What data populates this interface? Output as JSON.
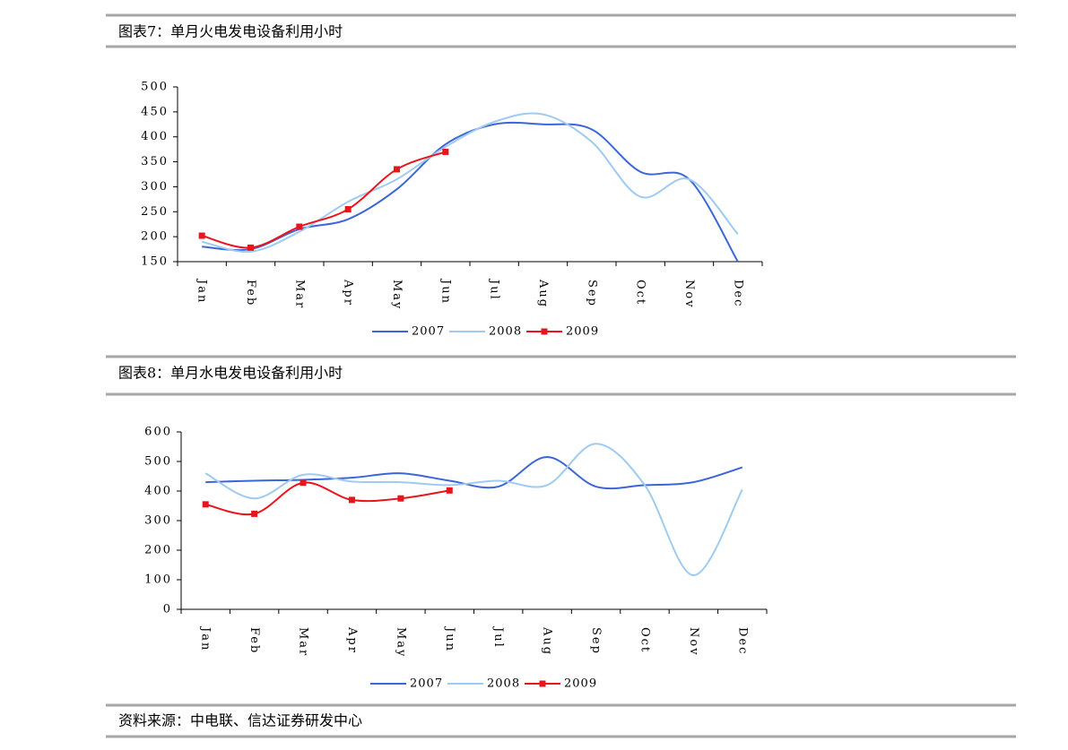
{
  "chart_data": [
    {
      "type": "line",
      "title": "图表7：单月火电发电设备利用小时",
      "categories": [
        "Jan",
        "Feb",
        "Mar",
        "Apr",
        "May",
        "Jun",
        "Jul",
        "Aug",
        "Sep",
        "Oct",
        "Nov",
        "Dec"
      ],
      "ylim": [
        150,
        500
      ],
      "yticks": [
        150,
        200,
        250,
        300,
        350,
        400,
        450,
        500
      ],
      "series": [
        {
          "name": "2007",
          "color": "#3a66d8",
          "values": [
            180,
            175,
            215,
            235,
            295,
            385,
            425,
            425,
            415,
            330,
            315,
            150
          ]
        },
        {
          "name": "2008",
          "color": "#9fcbf0",
          "values": [
            190,
            170,
            210,
            270,
            315,
            380,
            430,
            445,
            390,
            280,
            315,
            205
          ]
        },
        {
          "name": "2009",
          "color": "#e8161c",
          "marker": "square",
          "values": [
            202,
            178,
            220,
            255,
            335,
            370,
            null,
            null,
            null,
            null,
            null,
            null
          ]
        }
      ]
    },
    {
      "type": "line",
      "title": "图表8：单月水电发电设备利用小时",
      "categories": [
        "Jan",
        "Feb",
        "Mar",
        "Apr",
        "May",
        "Jun",
        "Jul",
        "Aug",
        "Sep",
        "Oct",
        "Nov",
        "Dec"
      ],
      "ylim": [
        0,
        600
      ],
      "yticks": [
        0,
        100,
        200,
        300,
        400,
        500,
        600
      ],
      "series": [
        {
          "name": "2007",
          "color": "#3a66d8",
          "values": [
            430,
            435,
            438,
            445,
            460,
            435,
            415,
            515,
            415,
            420,
            430,
            480
          ]
        },
        {
          "name": "2008",
          "color": "#9fcbf0",
          "values": [
            460,
            375,
            455,
            432,
            430,
            420,
            435,
            420,
            560,
            420,
            115,
            405
          ]
        },
        {
          "name": "2009",
          "color": "#e8161c",
          "marker": "square",
          "values": [
            355,
            323,
            428,
            370,
            375,
            402,
            null,
            null,
            null,
            null,
            null,
            null
          ]
        }
      ]
    }
  ],
  "source": "资料来源：中电联、信达证券研发中心"
}
